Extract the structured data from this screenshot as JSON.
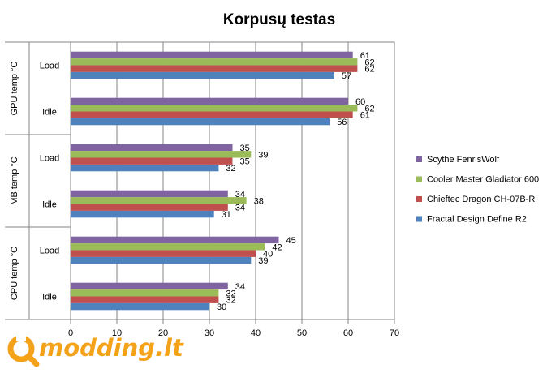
{
  "chart_data": {
    "type": "bar",
    "orientation": "horizontal",
    "title": "Korpusų testas",
    "xlim": [
      0,
      70
    ],
    "x_ticks": [
      "0",
      "10",
      "20",
      "30",
      "40",
      "50",
      "60",
      "70"
    ],
    "grid": true,
    "legend_position": "right",
    "groups": [
      {
        "label": "GPU temp °C",
        "categories": [
          "Load",
          "Idle"
        ]
      },
      {
        "label": "MB temp °C",
        "categories": [
          "Load",
          "Idle"
        ]
      },
      {
        "label": "CPU temp °C",
        "categories": [
          "Load",
          "Idle"
        ]
      }
    ],
    "categories": [
      "GPU Load",
      "GPU Idle",
      "MB Load",
      "MB Idle",
      "CPU Load",
      "CPU Idle"
    ],
    "series": [
      {
        "name": "Scythe FenrisWolf",
        "color": "#8064a2",
        "values": [
          61,
          60,
          35,
          34,
          45,
          34
        ]
      },
      {
        "name": "Cooler Master Gladiator  600",
        "color": "#9bbb59",
        "values": [
          62,
          62,
          39,
          38,
          42,
          32
        ]
      },
      {
        "name": "Chieftec Dragon CH-07B-R",
        "color": "#c0504d",
        "values": [
          62,
          61,
          35,
          34,
          40,
          32
        ]
      },
      {
        "name": "Fractal Design Define R2",
        "color": "#4f81bd",
        "values": [
          57,
          56,
          32,
          31,
          39,
          30
        ]
      }
    ]
  },
  "watermark": {
    "text": "modding.lt",
    "color": "#f5a21b"
  }
}
